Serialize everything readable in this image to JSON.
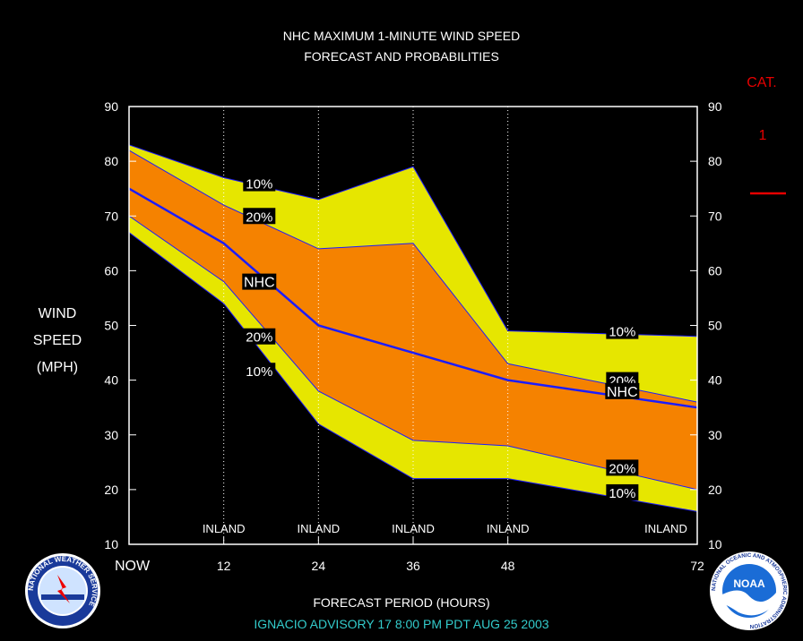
{
  "chart_data": {
    "type": "area",
    "title_line1": "NHC MAXIMUM 1-MINUTE WIND SPEED",
    "title_line2": "FORECAST AND PROBABILITIES",
    "ylabel_lines": [
      "WIND",
      "SPEED",
      "(MPH)"
    ],
    "xlabel": "FORECAST PERIOD (HOURS)",
    "footer": "IGNACIO   ADVISORY  17  8:00  PM  PDT  AUG  25  2003",
    "x": [
      0,
      12,
      24,
      36,
      48,
      72
    ],
    "x_tick_labels": [
      "NOW",
      "12",
      "24",
      "36",
      "48",
      "72"
    ],
    "ylim": [
      10,
      90
    ],
    "y_ticks": [
      10,
      20,
      30,
      40,
      50,
      60,
      70,
      80,
      90
    ],
    "inland_marks": [
      12,
      24,
      36,
      48,
      72
    ],
    "inland_label": "INLAND",
    "series": [
      {
        "name": "10%",
        "band": "upper",
        "values": [
          83,
          77,
          73,
          79,
          49,
          48
        ]
      },
      {
        "name": "20%",
        "band": "upper",
        "values": [
          82,
          72,
          64,
          65,
          43,
          36
        ]
      },
      {
        "name": "NHC",
        "values": [
          75,
          65,
          50,
          45,
          40,
          35
        ]
      },
      {
        "name": "20%",
        "band": "lower",
        "values": [
          70,
          58,
          38,
          29,
          28,
          20
        ]
      },
      {
        "name": "10%",
        "band": "lower",
        "values": [
          67,
          54,
          32,
          22,
          22,
          16
        ]
      }
    ],
    "labels": [
      {
        "text": "10%",
        "x": 16.5,
        "y": 76
      },
      {
        "text": "20%",
        "x": 16.5,
        "y": 70
      },
      {
        "text": "NHC",
        "x": 16.5,
        "y": 58
      },
      {
        "text": "20%",
        "x": 16.5,
        "y": 48
      },
      {
        "text": "10%",
        "x": 16.5,
        "y": 41.7
      },
      {
        "text": "10%",
        "x": 62.5,
        "y": 49
      },
      {
        "text": "20%",
        "x": 62.5,
        "y": 40
      },
      {
        "text": "NHC",
        "x": 62.5,
        "y": 38
      },
      {
        "text": "20%",
        "x": 62.5,
        "y": 24
      },
      {
        "text": "10%",
        "x": 62.5,
        "y": 19.5
      }
    ],
    "category": {
      "label": "CAT.",
      "value": "1"
    },
    "colors": {
      "outer_band": "#e6e600",
      "inner_band": "#f58200",
      "nhc_line": "#1c1cff",
      "category": "#e60000",
      "footer": "#33cccc"
    }
  },
  "logos": {
    "left_text": "NATIONAL WEATHER SERVICE",
    "right_text": "NATIONAL OCEANIC AND ATMOSPHERIC ADMINISTRATION",
    "right_center": "NOAA"
  }
}
